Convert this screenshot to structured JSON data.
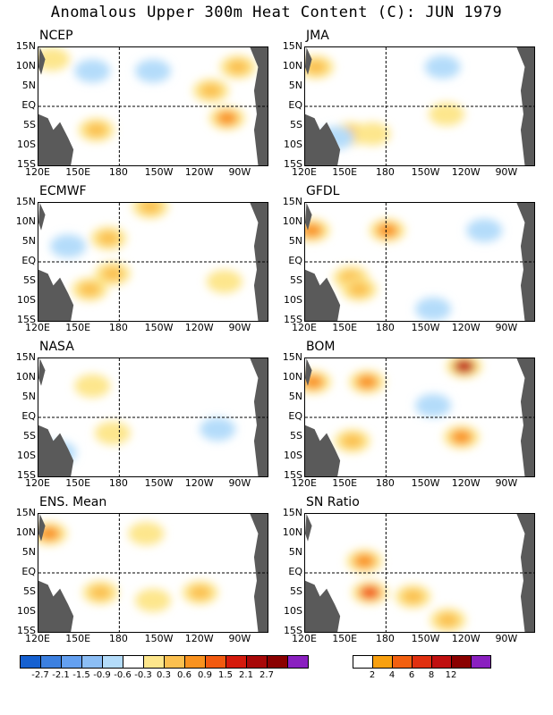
{
  "title": "Anomalous Upper 300m Heat Content (C): JUN 1979",
  "colors": {
    "land": "#5a5a5a",
    "line": "#000000",
    "levels": [
      "#1560d0",
      "#3c80e0",
      "#64a0f0",
      "#8cbef5",
      "#b4dcfa",
      "#ffffff",
      "#fde68c",
      "#fbc050",
      "#f9921f",
      "#f25a10",
      "#d41a0c",
      "#a80808",
      "#8a0000",
      "#8a20c0"
    ],
    "sn_levels": [
      "#ffffff",
      "#f8a010",
      "#f26010",
      "#e03010",
      "#c01010",
      "#8a0000",
      "#8a20c0"
    ]
  },
  "axes": {
    "x_ticks": [
      "120E",
      "150E",
      "180",
      "150W",
      "120W",
      "90W"
    ],
    "y_ticks": [
      "15N",
      "10N",
      "5N",
      "EQ",
      "5S",
      "10S",
      "15S"
    ]
  },
  "chart_data": [
    {
      "type": "heatmap",
      "title": "NCEP",
      "region": "upper-left",
      "features": [
        {
          "lon": 160,
          "lat": 9,
          "level": "light-blue"
        },
        {
          "lon": 205,
          "lat": 9,
          "level": "light-blue"
        },
        {
          "lon": 248,
          "lat": 4,
          "level": "orange"
        },
        {
          "lon": 260,
          "lat": -3,
          "level": "red-orange"
        },
        {
          "lon": 268,
          "lat": 10,
          "level": "orange"
        },
        {
          "lon": 163,
          "lat": -6,
          "level": "orange"
        },
        {
          "lon": 130,
          "lat": 12,
          "level": "yellow"
        }
      ]
    },
    {
      "type": "heatmap",
      "title": "JMA",
      "region": "upper-right",
      "features": [
        {
          "lon": 128,
          "lat": 10,
          "level": "orange"
        },
        {
          "lon": 222,
          "lat": 10,
          "level": "light-blue"
        },
        {
          "lon": 154,
          "lat": -7,
          "level": "orange"
        },
        {
          "lon": 170,
          "lat": -7,
          "level": "yellow"
        },
        {
          "lon": 225,
          "lat": -2,
          "level": "yellow"
        },
        {
          "lon": 143,
          "lat": -8,
          "level": "light-blue"
        }
      ]
    },
    {
      "type": "heatmap",
      "title": "ECMWF",
      "region": "middle-left",
      "features": [
        {
          "lon": 172,
          "lat": 6,
          "level": "orange"
        },
        {
          "lon": 203,
          "lat": 14,
          "level": "orange"
        },
        {
          "lon": 158,
          "lat": -7,
          "level": "orange"
        },
        {
          "lon": 175,
          "lat": -3,
          "level": "orange"
        },
        {
          "lon": 258,
          "lat": -5,
          "level": "yellow"
        },
        {
          "lon": 142,
          "lat": 4,
          "level": "light-blue"
        }
      ]
    },
    {
      "type": "heatmap",
      "title": "GFDL",
      "region": "middle-right",
      "features": [
        {
          "lon": 125,
          "lat": 8,
          "level": "red-orange"
        },
        {
          "lon": 181,
          "lat": 8,
          "level": "red-orange"
        },
        {
          "lon": 154,
          "lat": -4,
          "level": "orange"
        },
        {
          "lon": 160,
          "lat": -7,
          "level": "orange"
        },
        {
          "lon": 253,
          "lat": 8,
          "level": "light-blue"
        },
        {
          "lon": 215,
          "lat": -12,
          "level": "light-blue"
        }
      ]
    },
    {
      "type": "heatmap",
      "title": "NASA",
      "region": "lower-left",
      "features": [
        {
          "lon": 160,
          "lat": 8,
          "level": "yellow"
        },
        {
          "lon": 175,
          "lat": -4,
          "level": "yellow"
        },
        {
          "lon": 253,
          "lat": -3,
          "level": "light-blue"
        },
        {
          "lon": 135,
          "lat": -9,
          "level": "light-blue"
        }
      ]
    },
    {
      "type": "heatmap",
      "title": "BOM",
      "region": "lower-right",
      "features": [
        {
          "lon": 126,
          "lat": 9,
          "level": "red-orange"
        },
        {
          "lon": 166,
          "lat": 9,
          "level": "red-orange"
        },
        {
          "lon": 238,
          "lat": 13,
          "level": "dark-red"
        },
        {
          "lon": 155,
          "lat": -6,
          "level": "orange"
        },
        {
          "lon": 236,
          "lat": -5,
          "level": "red-orange"
        },
        {
          "lon": 215,
          "lat": 3,
          "level": "light-blue"
        }
      ]
    },
    {
      "type": "heatmap",
      "title": "ENS. Mean",
      "region": "bottom-left",
      "features": [
        {
          "lon": 128,
          "lat": 10,
          "level": "red-orange"
        },
        {
          "lon": 166,
          "lat": -5,
          "level": "orange"
        },
        {
          "lon": 240,
          "lat": -5,
          "level": "orange"
        },
        {
          "lon": 200,
          "lat": 10,
          "level": "yellow"
        },
        {
          "lon": 205,
          "lat": -7,
          "level": "yellow"
        }
      ]
    },
    {
      "type": "heatmap",
      "title": "SN Ratio",
      "region": "bottom-right",
      "features": [
        {
          "lon": 164,
          "lat": 3,
          "level": "red-orange"
        },
        {
          "lon": 168,
          "lat": -5,
          "level": "red"
        },
        {
          "lon": 200,
          "lat": -6,
          "level": "orange"
        },
        {
          "lon": 226,
          "lat": -12,
          "level": "orange"
        }
      ]
    }
  ],
  "colorbar_left": {
    "labels": [
      "-2.7",
      "-2.1",
      "-1.5",
      "-0.9",
      "-0.6",
      "-0.3",
      "0.3",
      "0.6",
      "0.9",
      "1.5",
      "2.1",
      "2.7"
    ]
  },
  "colorbar_right": {
    "labels": [
      "2",
      "4",
      "6",
      "8",
      "12"
    ]
  }
}
